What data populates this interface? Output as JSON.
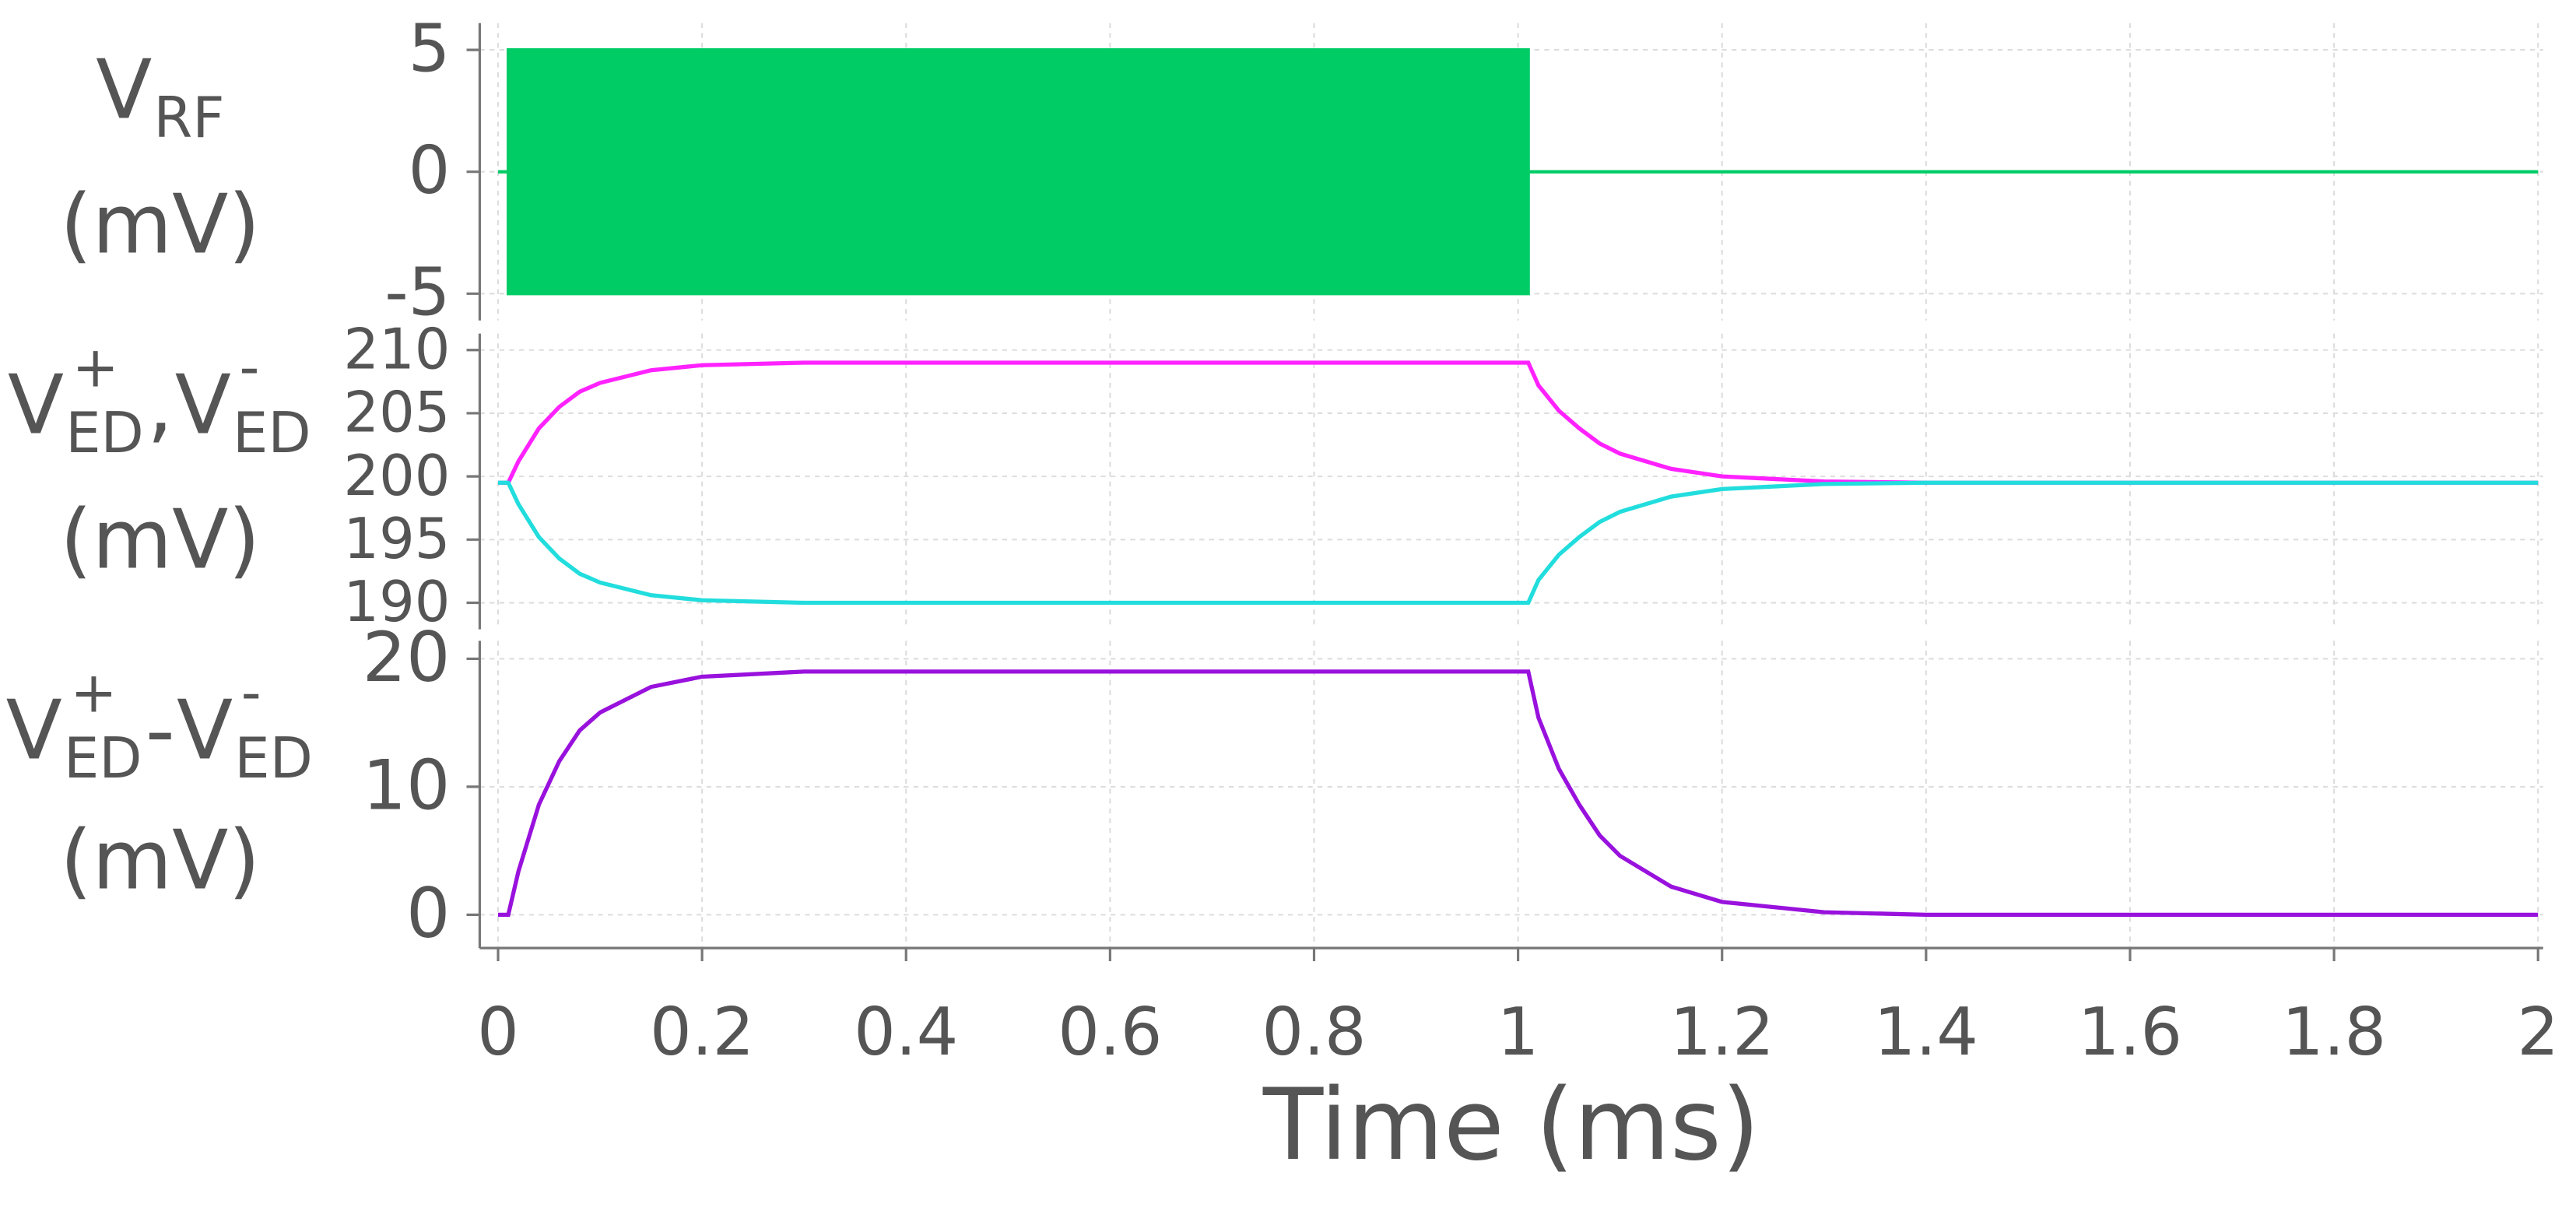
{
  "chart_data": [
    {
      "type": "band",
      "ylabel": [
        [
          {
            "text": "V"
          },
          {
            "text": "RF",
            "shift": "sub"
          }
        ],
        [
          {
            "text": "(mV)"
          }
        ]
      ],
      "x": [
        0,
        0.01,
        0.01,
        1.01,
        1.01,
        2
      ],
      "upper": [
        0,
        0,
        5,
        5,
        0,
        0
      ],
      "lower": [
        0,
        0,
        -5,
        -5,
        0,
        0
      ],
      "color": "#00cc66",
      "xlim": [
        -0.018,
        2.005
      ],
      "xticks": [
        0,
        0.2,
        0.4,
        0.6,
        0.8,
        1,
        1.2,
        1.4,
        1.6,
        1.8,
        2
      ],
      "ylim": [
        -6.1,
        6.1
      ],
      "yticks": [
        -5,
        0,
        5
      ],
      "grid": true
    },
    {
      "type": "line",
      "ylabel": [
        [
          {
            "text": "V"
          },
          {
            "sup": "+",
            "sub": "ED"
          },
          {
            "text": ","
          },
          {
            "text": "V"
          },
          {
            "sup": "-",
            "sub": "ED"
          }
        ],
        [
          {
            "text": "(mV)"
          }
        ]
      ],
      "x": [
        0,
        0.01,
        0.02,
        0.04,
        0.06,
        0.08,
        0.1,
        0.15,
        0.2,
        0.3,
        0.4,
        0.6,
        0.8,
        1.0,
        1.01,
        1.02,
        1.04,
        1.06,
        1.08,
        1.1,
        1.15,
        1.2,
        1.3,
        1.4,
        1.6,
        2.0
      ],
      "series": [
        {
          "color": "#ff22ff",
          "values": [
            199.5,
            199.5,
            201.2,
            203.8,
            205.5,
            206.7,
            207.4,
            208.4,
            208.8,
            209,
            209,
            209,
            209,
            209,
            209,
            207.2,
            205.2,
            203.8,
            202.6,
            201.8,
            200.6,
            200.0,
            199.6,
            199.5,
            199.5,
            199.5
          ]
        },
        {
          "color": "#22dddd",
          "values": [
            199.5,
            199.5,
            197.8,
            195.2,
            193.5,
            192.3,
            191.6,
            190.6,
            190.2,
            190,
            190,
            190,
            190,
            190,
            190,
            191.8,
            193.8,
            195.2,
            196.4,
            197.2,
            198.4,
            199.0,
            199.4,
            199.5,
            199.5,
            199.5
          ]
        }
      ],
      "xlim": [
        -0.018,
        2.005
      ],
      "xticks": [
        0,
        0.2,
        0.4,
        0.6,
        0.8,
        1,
        1.2,
        1.4,
        1.6,
        1.8,
        2
      ],
      "ylim": [
        187.9,
        211.3
      ],
      "yticks": [
        190,
        195,
        200,
        205,
        210
      ],
      "grid": true
    },
    {
      "type": "line",
      "ylabel": [
        [
          {
            "text": "V"
          },
          {
            "sup": "+",
            "sub": "ED"
          },
          {
            "text": "-"
          },
          {
            "text": "V"
          },
          {
            "sup": "-",
            "sub": "ED"
          }
        ],
        [
          {
            "text": "(mV)"
          }
        ]
      ],
      "x": [
        0,
        0.01,
        0.02,
        0.04,
        0.06,
        0.08,
        0.1,
        0.15,
        0.2,
        0.3,
        0.4,
        0.6,
        0.8,
        1.0,
        1.01,
        1.02,
        1.04,
        1.06,
        1.08,
        1.1,
        1.15,
        1.2,
        1.3,
        1.4,
        1.6,
        2.0
      ],
      "series": [
        {
          "color": "#9911dd",
          "values": [
            0,
            0,
            3.4,
            8.6,
            12,
            14.4,
            15.8,
            17.8,
            18.6,
            19,
            19,
            19,
            19,
            19,
            19,
            15.4,
            11.4,
            8.6,
            6.2,
            4.6,
            2.2,
            1.0,
            0.2,
            0,
            0,
            0
          ]
        }
      ],
      "xlabel": "Time (ms)",
      "xlim": [
        -0.018,
        2.005
      ],
      "xticks": [
        0,
        0.2,
        0.4,
        0.6,
        0.8,
        1,
        1.2,
        1.4,
        1.6,
        1.8,
        2
      ],
      "ylim": [
        -2.6,
        21.4
      ],
      "yticks": [
        0,
        10,
        20
      ],
      "grid": true
    }
  ]
}
